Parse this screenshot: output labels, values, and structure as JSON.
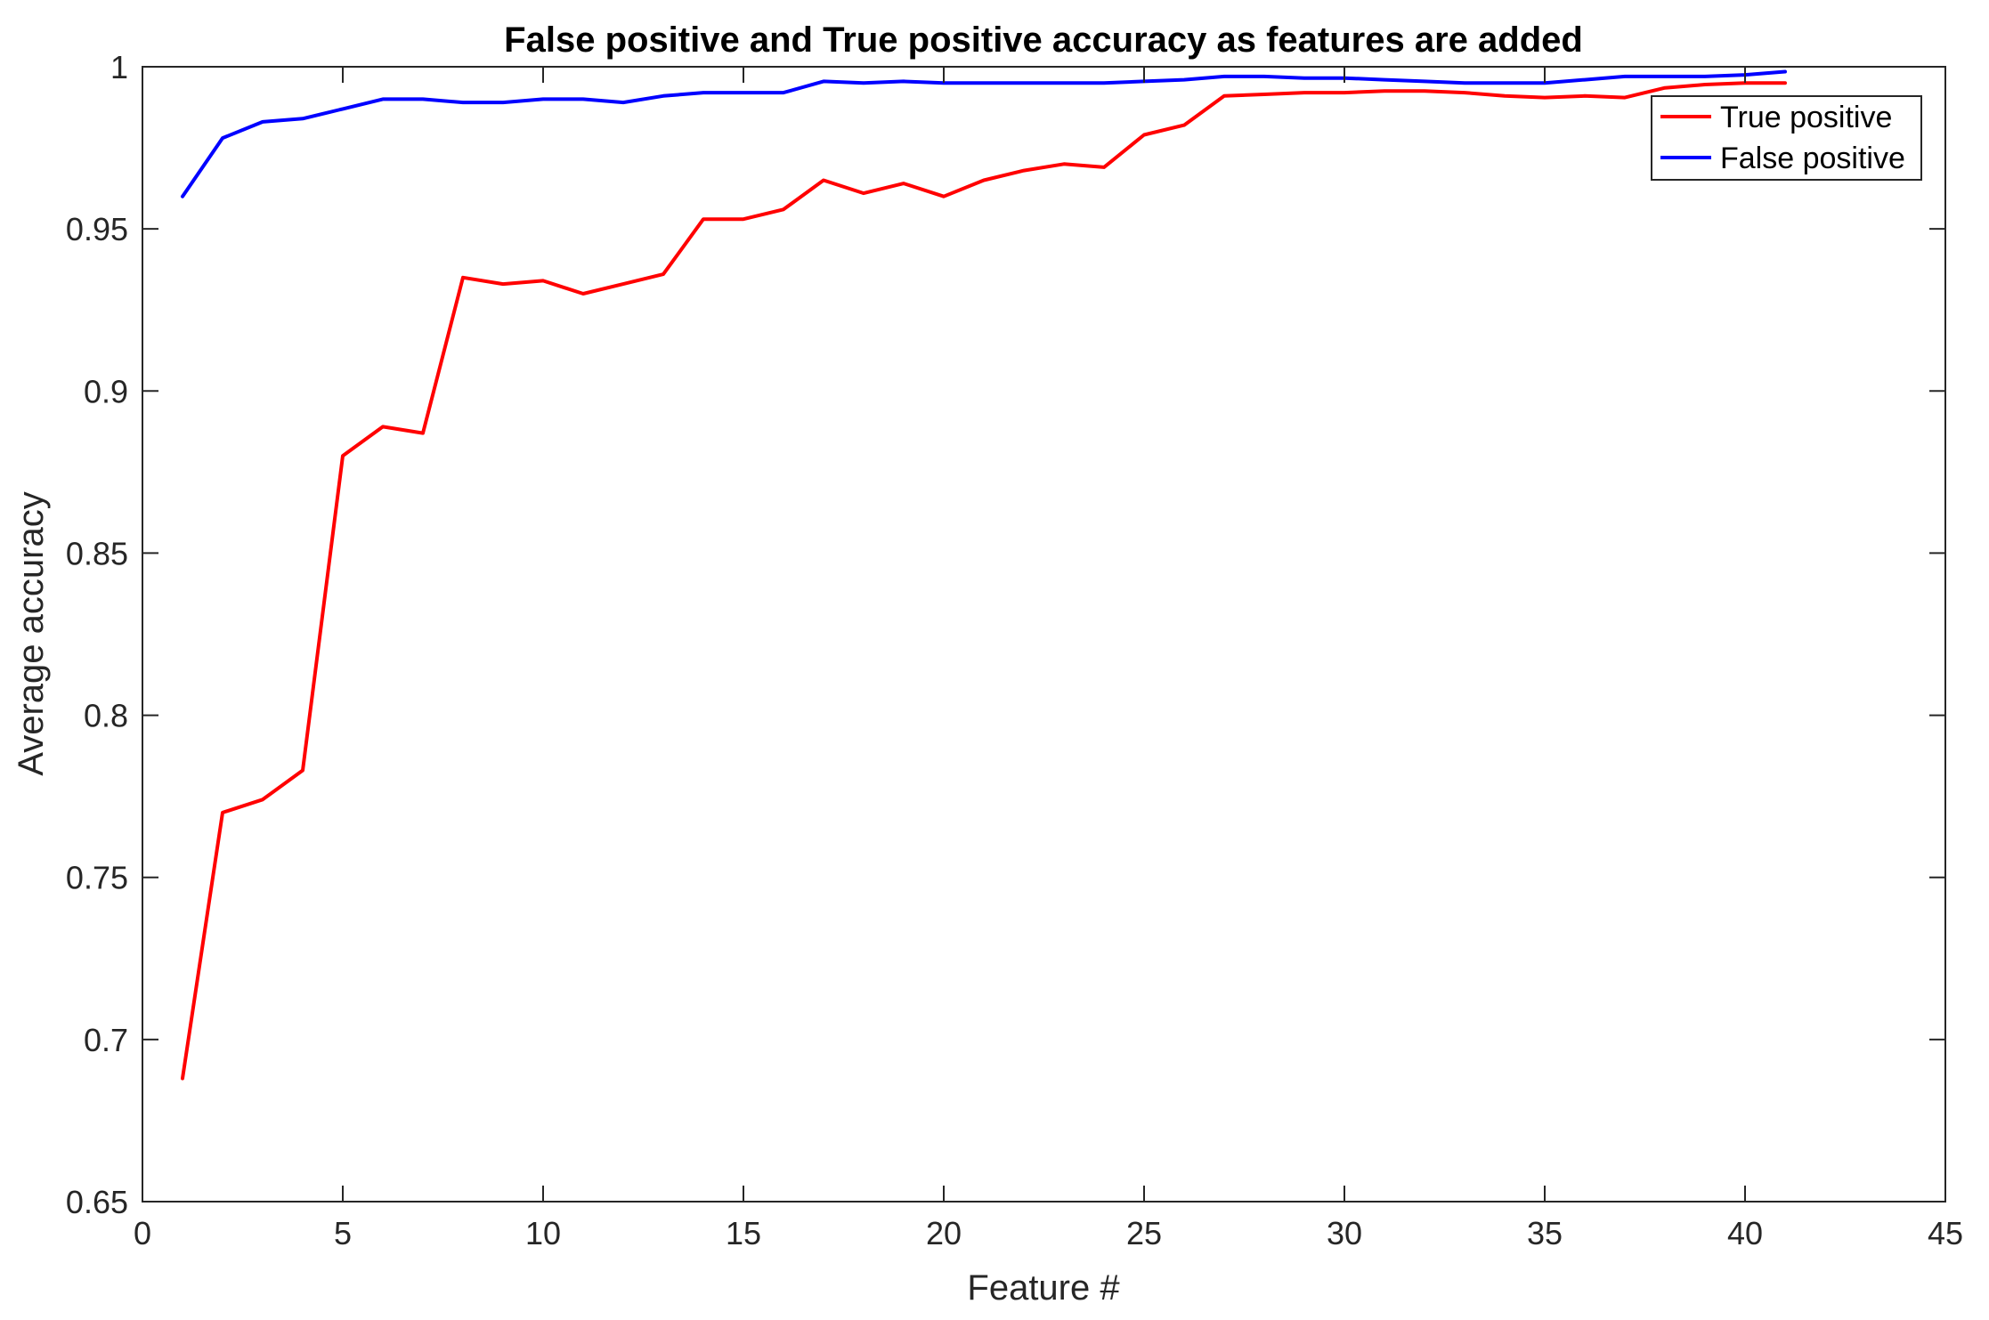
{
  "chart_data": {
    "type": "line",
    "title": "False positive and True positive accuracy as features are added",
    "xlabel": "Feature #",
    "ylabel": "Average accuracy",
    "xlim": [
      0,
      45
    ],
    "ylim": [
      0.65,
      1
    ],
    "xticks": [
      0,
      5,
      10,
      15,
      20,
      25,
      30,
      35,
      40,
      45
    ],
    "xtick_labels": [
      "0",
      "5",
      "10",
      "15",
      "20",
      "25",
      "30",
      "35",
      "40",
      "45"
    ],
    "yticks": [
      0.65,
      0.7,
      0.75,
      0.8,
      0.85,
      0.9,
      0.95,
      1
    ],
    "ytick_labels": [
      "0.65",
      "0.7",
      "0.75",
      "0.8",
      "0.85",
      "0.9",
      "0.95",
      "1"
    ],
    "grid": false,
    "legend_position": "top-right",
    "x": [
      1,
      2,
      3,
      4,
      5,
      6,
      7,
      8,
      9,
      10,
      11,
      12,
      13,
      14,
      15,
      16,
      17,
      18,
      19,
      20,
      21,
      22,
      23,
      24,
      25,
      26,
      27,
      28,
      29,
      30,
      31,
      32,
      33,
      34,
      35,
      36,
      37,
      38,
      39,
      40,
      41
    ],
    "series": [
      {
        "name": "True positive",
        "color": "#ff0000",
        "values": [
          0.688,
          0.77,
          0.774,
          0.783,
          0.88,
          0.889,
          0.887,
          0.935,
          0.933,
          0.934,
          0.93,
          0.933,
          0.936,
          0.953,
          0.953,
          0.956,
          0.965,
          0.961,
          0.964,
          0.96,
          0.965,
          0.968,
          0.97,
          0.969,
          0.979,
          0.982,
          0.991,
          0.9915,
          0.992,
          0.992,
          0.9925,
          0.9925,
          0.992,
          0.991,
          0.9905,
          0.991,
          0.9905,
          0.9935,
          0.9945,
          0.995,
          0.995
        ]
      },
      {
        "name": "False positive",
        "color": "#0000ff",
        "values": [
          0.96,
          0.978,
          0.983,
          0.984,
          0.987,
          0.99,
          0.99,
          0.989,
          0.989,
          0.99,
          0.99,
          0.989,
          0.991,
          0.992,
          0.992,
          0.992,
          0.9955,
          0.995,
          0.9955,
          0.995,
          0.995,
          0.995,
          0.995,
          0.995,
          0.9955,
          0.996,
          0.997,
          0.997,
          0.9965,
          0.9965,
          0.996,
          0.9955,
          0.995,
          0.995,
          0.995,
          0.996,
          0.997,
          0.997,
          0.997,
          0.9975,
          0.9985
        ]
      }
    ]
  }
}
